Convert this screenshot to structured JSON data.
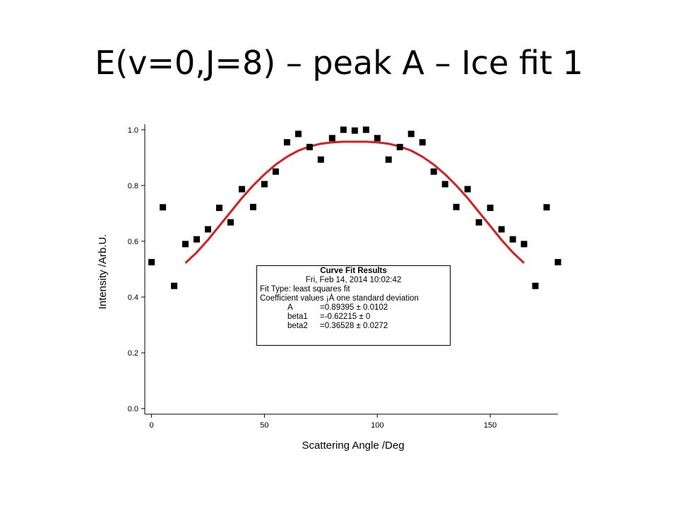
{
  "slide": {
    "title": "E(v=0,J=8) – peak A – Ice fit 1"
  },
  "chart_data": {
    "type": "scatter",
    "xlabel": "Scattering Angle /Deg",
    "ylabel": "Intensity /Arb.U.",
    "xlim": [
      -3,
      180
    ],
    "ylim": [
      -0.02,
      1.02
    ],
    "x_ticks": [
      0,
      50,
      100,
      150
    ],
    "y_ticks": [
      0.0,
      0.2,
      0.4,
      0.6,
      0.8,
      1.0
    ],
    "x_tick_labels": [
      "0",
      "50",
      "100",
      "150"
    ],
    "y_tick_labels": [
      "0.0",
      "0.2",
      "0.4",
      "0.6",
      "0.8",
      "1.0"
    ],
    "grid": false,
    "series": [
      {
        "kind": "points",
        "marker": "square",
        "color": "#000000",
        "x": [
          0,
          5,
          10,
          15,
          20,
          25,
          30,
          35,
          40,
          45,
          50,
          55,
          60,
          65,
          70,
          75,
          80,
          85,
          90,
          95,
          100,
          105,
          110,
          115,
          120,
          125,
          130,
          135,
          140,
          145,
          150,
          155,
          160,
          165,
          170,
          175,
          180
        ],
        "y": [
          0.525,
          0.722,
          0.44,
          0.59,
          0.607,
          0.643,
          0.72,
          0.668,
          0.787,
          0.723,
          0.805,
          0.85,
          0.955,
          0.985,
          0.938,
          0.893,
          0.97,
          1.0,
          0.997,
          1.0,
          0.97,
          0.893,
          0.938,
          0.985,
          0.955,
          0.85,
          0.805,
          0.723,
          0.787,
          0.668,
          0.72,
          0.643,
          0.607,
          0.59,
          0.44,
          0.722,
          0.525
        ]
      },
      {
        "kind": "fit",
        "color": "#e31a1c",
        "x": [
          15,
          20,
          25,
          30,
          35,
          40,
          45,
          50,
          55,
          60,
          65,
          70,
          75,
          80,
          85,
          90,
          95,
          100,
          105,
          110,
          115,
          120,
          125,
          130,
          135,
          140,
          145,
          150,
          155,
          160,
          165
        ],
        "y": [
          0.522,
          0.56,
          0.605,
          0.655,
          0.705,
          0.755,
          0.8,
          0.84,
          0.875,
          0.903,
          0.925,
          0.94,
          0.95,
          0.955,
          0.957,
          0.957,
          0.957,
          0.955,
          0.95,
          0.94,
          0.925,
          0.903,
          0.875,
          0.84,
          0.8,
          0.755,
          0.705,
          0.655,
          0.605,
          0.56,
          0.522
        ]
      }
    ],
    "fit_results": {
      "header": "Curve Fit Results",
      "timestamp": "Fri, Feb 14, 2014 10:02:42",
      "fit_type": "Fit Type: least squares fit",
      "coef_header": "Coefficient values ¡À one standard deviation",
      "coefficients": [
        {
          "name": "A",
          "value": "=0.89395 ± 0.0102"
        },
        {
          "name": "beta1",
          "value": "=-0.62215 ± 0"
        },
        {
          "name": "beta2",
          "value": "=0.36528 ± 0.0272"
        }
      ]
    }
  }
}
